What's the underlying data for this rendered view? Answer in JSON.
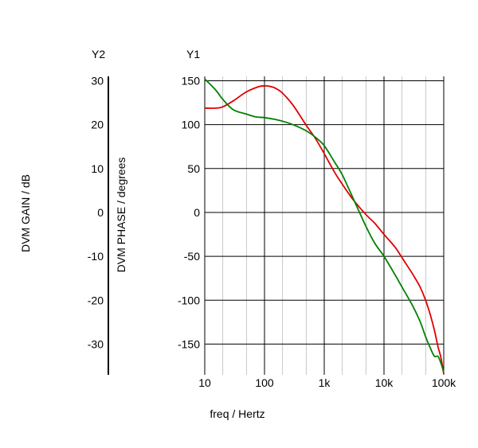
{
  "chart_data": {
    "type": "line",
    "x_scale": "log",
    "xlim": [
      10,
      100000
    ],
    "x_ticks": [
      10,
      100,
      1000,
      10000,
      100000
    ],
    "x_tick_labels": [
      "10",
      "100",
      "1k",
      "10k",
      "100k"
    ],
    "xlabel": "freq / Hertz",
    "y1": {
      "axis_name": "Y1",
      "label": "DVM PHASE / degrees",
      "ylim": [
        -185,
        155
      ],
      "ticks": [
        150,
        100,
        50,
        0,
        -50,
        -100,
        -150
      ],
      "tick_labels": [
        "150",
        "100",
        "50",
        "0",
        "-50",
        "-100",
        "-150"
      ]
    },
    "y2": {
      "axis_name": "Y2",
      "label": "DVM GAIN / dB",
      "ylim": [
        -39.5,
        30
      ],
      "ticks": [
        30,
        20,
        10,
        0,
        -10,
        -20,
        -30
      ],
      "tick_labels": [
        "30",
        "20",
        "10",
        "0",
        "-10",
        "-20",
        "-30"
      ]
    },
    "grid": true,
    "series": [
      {
        "axis": "y2",
        "color": "#e00000",
        "x": [
          10,
          15,
          20,
          30,
          50,
          80,
          100,
          120,
          150,
          200,
          300,
          500,
          700,
          1000,
          1500,
          2000,
          3000,
          5000,
          7000,
          10000,
          15000,
          20000,
          30000,
          40000,
          50000,
          60000,
          70000,
          80000,
          90000,
          100000
        ],
        "values": [
          22.6,
          22.6,
          22.9,
          24.3,
          26.4,
          27.6,
          27.8,
          27.7,
          27.3,
          26.1,
          23.3,
          18.6,
          15.7,
          12.0,
          7.6,
          4.9,
          1.4,
          -2.2,
          -4.2,
          -6.8,
          -9.6,
          -12.2,
          -16.0,
          -19.0,
          -22.2,
          -25.7,
          -29.2,
          -32.9,
          -35.6,
          -39.3
        ]
      },
      {
        "axis": "y1",
        "color": "#008000",
        "x": [
          10,
          15,
          20,
          30,
          50,
          70,
          100,
          150,
          200,
          300,
          500,
          700,
          1000,
          1500,
          2000,
          3000,
          5000,
          7000,
          10000,
          15000,
          20000,
          30000,
          40000,
          50000,
          60000,
          70000,
          80000,
          90000,
          100000
        ],
        "values": [
          152,
          140,
          129,
          117,
          112,
          109,
          108,
          106,
          104,
          100,
          93,
          86,
          76,
          57,
          43,
          17,
          -16,
          -35,
          -50,
          -70,
          -85,
          -106,
          -124,
          -142,
          -155,
          -164,
          -164,
          -172,
          -182
        ]
      }
    ]
  }
}
